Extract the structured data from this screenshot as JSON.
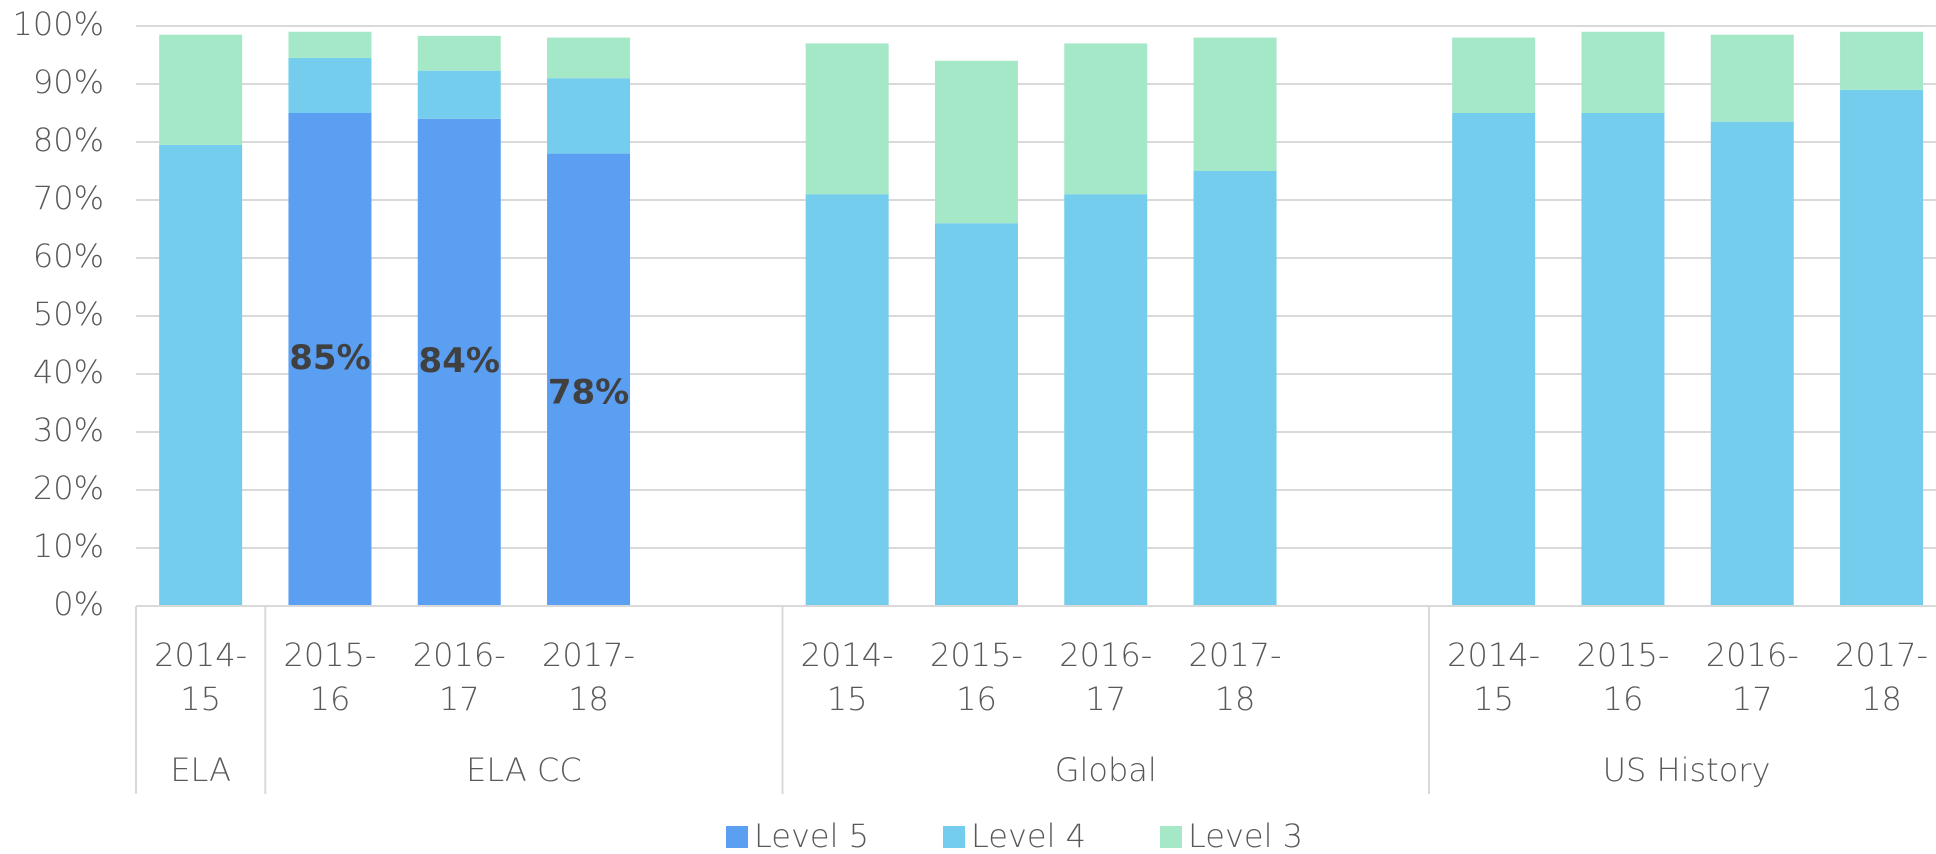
{
  "chart_data": {
    "type": "stacked_bar",
    "categories": [
      "2014-15",
      "2015-16",
      "2016-17",
      "2017-18",
      null,
      "2014-15",
      "2015-16",
      "2016-17",
      "2017-18",
      null,
      "2014-15",
      "2015-16",
      "2016-17",
      "2017-18"
    ],
    "groups": [
      {
        "name": "ELA",
        "count": 1
      },
      {
        "name": "ELA CC",
        "count": 4
      },
      {
        "name": "Global",
        "count": 5
      },
      {
        "name": "US History",
        "count": 4
      }
    ],
    "series": [
      {
        "name": "Level 5",
        "color": "#5b9ff2",
        "values": [
          null,
          85,
          84,
          78,
          null,
          null,
          null,
          null,
          null,
          null,
          null,
          null,
          null,
          null
        ],
        "value_labels": [
          null,
          "85%",
          "84%",
          "78%",
          null,
          null,
          null,
          null,
          null,
          null,
          null,
          null,
          null,
          null
        ]
      },
      {
        "name": "Level 4",
        "color": "#74cdec",
        "values": [
          79.5,
          9.5,
          8.3,
          13,
          null,
          71,
          66,
          71,
          75,
          null,
          85,
          85,
          83.5,
          89
        ]
      },
      {
        "name": "Level 3",
        "color": "#a5e8c8",
        "values": [
          19,
          4.5,
          6,
          7,
          null,
          26,
          28,
          26,
          23,
          null,
          13,
          14,
          15,
          10
        ]
      }
    ],
    "ylim": [
      0,
      100
    ],
    "yticks": [
      {
        "value": 0,
        "label": "0%"
      },
      {
        "value": 10,
        "label": "10%"
      },
      {
        "value": 20,
        "label": "20%"
      },
      {
        "value": 30,
        "label": "30%"
      },
      {
        "value": 40,
        "label": "40%"
      },
      {
        "value": 50,
        "label": "50%"
      },
      {
        "value": 60,
        "label": "60%"
      },
      {
        "value": 70,
        "label": "70%"
      },
      {
        "value": 80,
        "label": "80%"
      },
      {
        "value": 90,
        "label": "90%"
      },
      {
        "value": 100,
        "label": "100%"
      }
    ],
    "grid": true,
    "legend": "bottom"
  }
}
